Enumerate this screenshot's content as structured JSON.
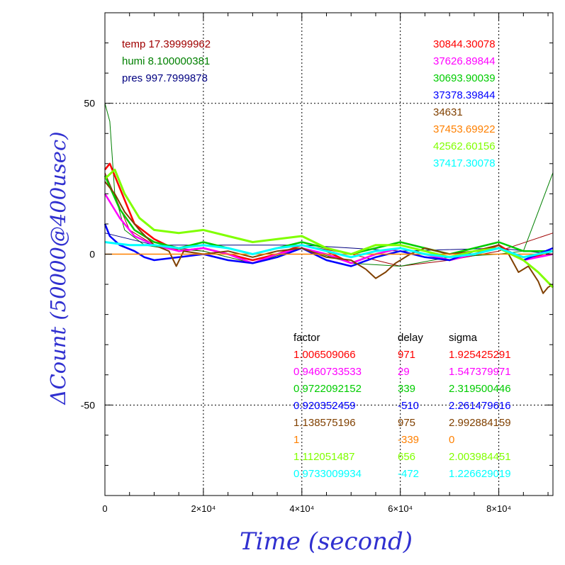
{
  "chart_data": {
    "type": "line",
    "xlabel": "Time (second)",
    "ylabel": "ΔCount (50000@400usec)",
    "xlim": [
      0,
      91000
    ],
    "ylim": [
      -80,
      80
    ],
    "grid": true,
    "x_ticks": [
      {
        "value": 0,
        "label": "0"
      },
      {
        "value": 20000,
        "label": "2×10⁴"
      },
      {
        "value": 40000,
        "label": "4×10⁴"
      },
      {
        "value": 60000,
        "label": "6×10⁴"
      },
      {
        "value": 80000,
        "label": "8×10⁴"
      }
    ],
    "y_ticks": [
      {
        "value": 50,
        "label": "50"
      },
      {
        "value": 0,
        "label": "0"
      },
      {
        "value": -50,
        "label": "-50"
      }
    ],
    "env_legend": [
      {
        "text": "temp 17.39999962",
        "color": "#a00000"
      },
      {
        "text": "humi 8.100000381",
        "color": "#008000"
      },
      {
        "text": "pres 997.7999878",
        "color": "#000080"
      }
    ],
    "count_legend": [
      {
        "text": "30844.30078",
        "color": "#ff0000"
      },
      {
        "text": "37626.89844",
        "color": "#ff00ff"
      },
      {
        "text": "30693.90039",
        "color": "#00cc00"
      },
      {
        "text": "37378.39844",
        "color": "#0000ff"
      },
      {
        "text": "34631",
        "color": "#804000"
      },
      {
        "text": "37453.69922",
        "color": "#ff8000"
      },
      {
        "text": "42562.60156",
        "color": "#80ff00"
      },
      {
        "text": "37417.30078",
        "color": "#00ffff"
      }
    ],
    "table": {
      "headers": [
        "factor",
        "delay",
        "sigma"
      ],
      "rows": [
        {
          "factor": "1.006509066",
          "delay": "971",
          "sigma": "1.925425291",
          "color": "#ff0000"
        },
        {
          "factor": "0.9460733533",
          "delay": "29",
          "sigma": "1.547379971",
          "color": "#ff00ff"
        },
        {
          "factor": "0.9722092152",
          "delay": "339",
          "sigma": "2.319500446",
          "color": "#00cc00"
        },
        {
          "factor": "0.920352459",
          "delay": "-510",
          "sigma": "2.261479616",
          "color": "#0000ff"
        },
        {
          "factor": "1.138575196",
          "delay": "975",
          "sigma": "2.992884159",
          "color": "#804000"
        },
        {
          "factor": "1",
          "delay": "-339",
          "sigma": "0",
          "color": "#ff8000"
        },
        {
          "factor": "1.112051487",
          "delay": "656",
          "sigma": "2.003984451",
          "color": "#80ff00"
        },
        {
          "factor": "0.9733009934",
          "delay": "-472",
          "sigma": "1.226629019",
          "color": "#00ffff"
        }
      ]
    },
    "series": [
      {
        "color": "#a00000",
        "width": 1,
        "x": [
          0,
          5000,
          10000,
          20000,
          30000,
          40000,
          50000,
          60000,
          70000,
          80000,
          91000
        ],
        "y": [
          27,
          8,
          3,
          1,
          -3,
          3,
          0,
          -4,
          -2,
          1,
          7
        ]
      },
      {
        "color": "#008000",
        "width": 1,
        "x": [
          0,
          1000,
          2000,
          4000,
          8000,
          12000,
          20000,
          30000,
          40000,
          50000,
          60000,
          70000,
          80000,
          85000,
          91000
        ],
        "y": [
          50,
          44,
          20,
          8,
          3,
          2,
          1,
          -3,
          2,
          -3,
          -4,
          -1,
          0,
          1,
          27
        ]
      },
      {
        "color": "#000080",
        "width": 1,
        "x": [
          0,
          10000,
          20000,
          40000,
          60000,
          80000,
          91000
        ],
        "y": [
          7,
          3,
          3,
          3,
          1,
          2,
          0
        ]
      },
      {
        "color": "#ff0000",
        "width": 2.5,
        "x": [
          0,
          1000,
          3000,
          6000,
          10000,
          15000,
          20000,
          25000,
          30000,
          35000,
          40000,
          45000,
          50000,
          55000,
          60000,
          65000,
          70000,
          75000,
          80000,
          85000,
          91000
        ],
        "y": [
          28,
          30,
          22,
          10,
          5,
          1,
          2,
          0,
          -2,
          0,
          3,
          1,
          -3,
          0,
          2,
          0,
          -2,
          0,
          3,
          -2,
          1
        ]
      },
      {
        "color": "#ff00ff",
        "width": 2.5,
        "x": [
          0,
          3000,
          6000,
          10000,
          15000,
          20000,
          25000,
          30000,
          35000,
          40000,
          45000,
          50000,
          55000,
          60000,
          65000,
          70000,
          75000,
          80000,
          85000,
          91000
        ],
        "y": [
          20,
          12,
          6,
          3,
          1,
          2,
          0,
          -3,
          0,
          2,
          0,
          -3,
          0,
          2,
          0,
          -2,
          0,
          2,
          -2,
          0
        ]
      },
      {
        "color": "#00cc00",
        "width": 2.5,
        "x": [
          0,
          3000,
          6000,
          10000,
          15000,
          20000,
          25000,
          30000,
          35000,
          40000,
          45000,
          50000,
          55000,
          60000,
          65000,
          70000,
          75000,
          80000,
          85000,
          91000
        ],
        "y": [
          26,
          15,
          8,
          4,
          2,
          4,
          2,
          0,
          2,
          4,
          2,
          0,
          2,
          4,
          2,
          0,
          2,
          4,
          1,
          1
        ]
      },
      {
        "color": "#0000ff",
        "width": 2.5,
        "x": [
          0,
          1000,
          3000,
          6000,
          8000,
          10000,
          15000,
          20000,
          25000,
          30000,
          35000,
          40000,
          45000,
          50000,
          55000,
          60000,
          65000,
          70000,
          75000,
          80000,
          85000,
          91000
        ],
        "y": [
          10,
          6,
          3,
          1,
          -1,
          -2,
          -1,
          0,
          -2,
          -3,
          -1,
          2,
          -2,
          -4,
          -1,
          1,
          -1,
          -2,
          1,
          2,
          -2,
          2
        ]
      },
      {
        "color": "#804000",
        "width": 2,
        "x": [
          0,
          2000,
          4000,
          7000,
          10000,
          13000,
          14500,
          16000,
          20000,
          25000,
          30000,
          35000,
          40000,
          45000,
          50000,
          53000,
          55000,
          57000,
          59000,
          62000,
          65000,
          70000,
          75000,
          80000,
          82000,
          84000,
          86000,
          88000,
          89000,
          90000,
          91000
        ],
        "y": [
          24,
          20,
          14,
          8,
          3,
          1,
          -4,
          1,
          0,
          1,
          -1,
          1,
          2,
          -1,
          -2,
          -5,
          -8,
          -6,
          -3,
          0,
          2,
          0,
          1,
          3,
          0,
          -6,
          -4,
          -9,
          -13,
          -11,
          -10
        ]
      },
      {
        "color": "#ff8000",
        "width": 1.5,
        "x": [
          0,
          91000
        ],
        "y": [
          0,
          0
        ]
      },
      {
        "color": "#80ff00",
        "width": 3,
        "x": [
          0,
          2000,
          4000,
          7000,
          10000,
          15000,
          20000,
          25000,
          30000,
          35000,
          40000,
          45000,
          50000,
          55000,
          60000,
          65000,
          70000,
          75000,
          80000,
          85000,
          88000,
          91000
        ],
        "y": [
          25,
          28,
          20,
          12,
          8,
          7,
          8,
          6,
          4,
          5,
          6,
          2,
          0,
          3,
          3,
          1,
          -1,
          1,
          2,
          -2,
          -6,
          -11
        ]
      },
      {
        "color": "#00ffff",
        "width": 3,
        "x": [
          0,
          5000,
          10000,
          15000,
          20000,
          25000,
          30000,
          35000,
          40000,
          45000,
          50000,
          55000,
          60000,
          65000,
          70000,
          75000,
          80000,
          85000,
          91000
        ],
        "y": [
          4,
          3,
          3,
          2,
          3,
          2,
          0,
          2,
          3,
          1,
          -1,
          1,
          2,
          0,
          -1,
          0,
          2,
          -1,
          1
        ]
      }
    ]
  }
}
